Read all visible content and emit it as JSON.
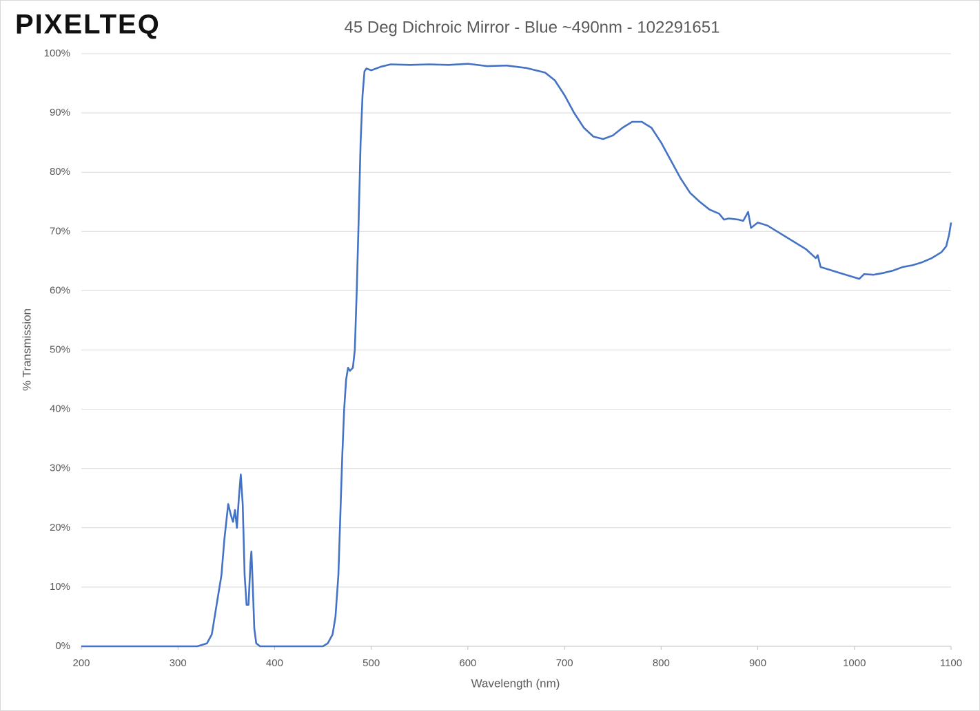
{
  "logo": "PIXELTEQ",
  "chart_data": {
    "type": "line",
    "title": "45 Deg Dichroic Mirror - Blue ~490nm - 102291651",
    "x_label": "Wavelength (nm)",
    "y_label": "% Transmission",
    "color": "#4472c4",
    "grid": true,
    "xlim": [
      200,
      1100
    ],
    "xticks": [
      200,
      300,
      400,
      500,
      600,
      700,
      800,
      900,
      1000,
      1100
    ],
    "ylim": [
      0,
      100
    ],
    "yticks": [
      {
        "value": 0,
        "label": "0%"
      },
      {
        "value": 10,
        "label": "10%"
      },
      {
        "value": 20,
        "label": "20%"
      },
      {
        "value": 30,
        "label": "30%"
      },
      {
        "value": 40,
        "label": "40%"
      },
      {
        "value": 50,
        "label": "50%"
      },
      {
        "value": 60,
        "label": "60%"
      },
      {
        "value": 70,
        "label": "70%"
      },
      {
        "value": 80,
        "label": "80%"
      },
      {
        "value": 90,
        "label": "90%"
      },
      {
        "value": 100,
        "label": "100%"
      }
    ],
    "x": [
      200,
      320,
      330,
      335,
      340,
      345,
      348,
      352,
      355,
      357,
      359,
      361,
      363,
      365,
      367,
      369,
      371,
      373,
      375,
      376,
      377,
      379,
      381,
      385,
      450,
      455,
      460,
      463,
      466,
      468,
      470,
      472,
      474,
      476,
      478,
      481,
      483,
      485,
      487,
      489,
      491,
      493,
      495,
      500,
      510,
      520,
      540,
      560,
      580,
      600,
      620,
      640,
      660,
      680,
      690,
      700,
      710,
      720,
      730,
      740,
      750,
      760,
      770,
      780,
      790,
      800,
      810,
      820,
      830,
      840,
      850,
      860,
      865,
      870,
      880,
      885,
      890,
      893,
      900,
      910,
      920,
      930,
      940,
      950,
      960,
      962,
      965,
      975,
      985,
      995,
      1005,
      1010,
      1020,
      1030,
      1040,
      1050,
      1060,
      1070,
      1080,
      1090,
      1095,
      1098,
      1100
    ],
    "values": [
      0,
      0,
      0.5,
      2,
      7,
      12,
      18,
      24,
      22,
      21,
      23,
      20,
      25,
      29,
      24,
      12,
      7,
      7,
      14,
      16,
      12,
      3,
      0.5,
      0,
      0,
      0.5,
      2,
      5,
      12,
      22,
      32,
      40,
      45,
      47,
      46.5,
      47,
      50,
      60,
      72,
      85,
      93,
      97,
      97.5,
      97.2,
      97.8,
      98.2,
      98.1,
      98.2,
      98.1,
      98.3,
      97.9,
      98.0,
      97.6,
      96.8,
      95.5,
      93,
      90,
      87.5,
      86,
      85.6,
      86.2,
      87.5,
      88.5,
      88.5,
      87.5,
      85,
      82,
      79,
      76.5,
      75,
      73.7,
      73,
      72,
      72.2,
      72,
      71.8,
      73.3,
      70.6,
      71.5,
      71,
      70,
      69,
      68,
      67,
      65.5,
      66,
      64,
      63.5,
      63,
      62.5,
      62,
      62.8,
      62.7,
      63,
      63.4,
      64,
      64.3,
      64.8,
      65.5,
      66.5,
      67.5,
      69.5,
      71.5
    ]
  }
}
